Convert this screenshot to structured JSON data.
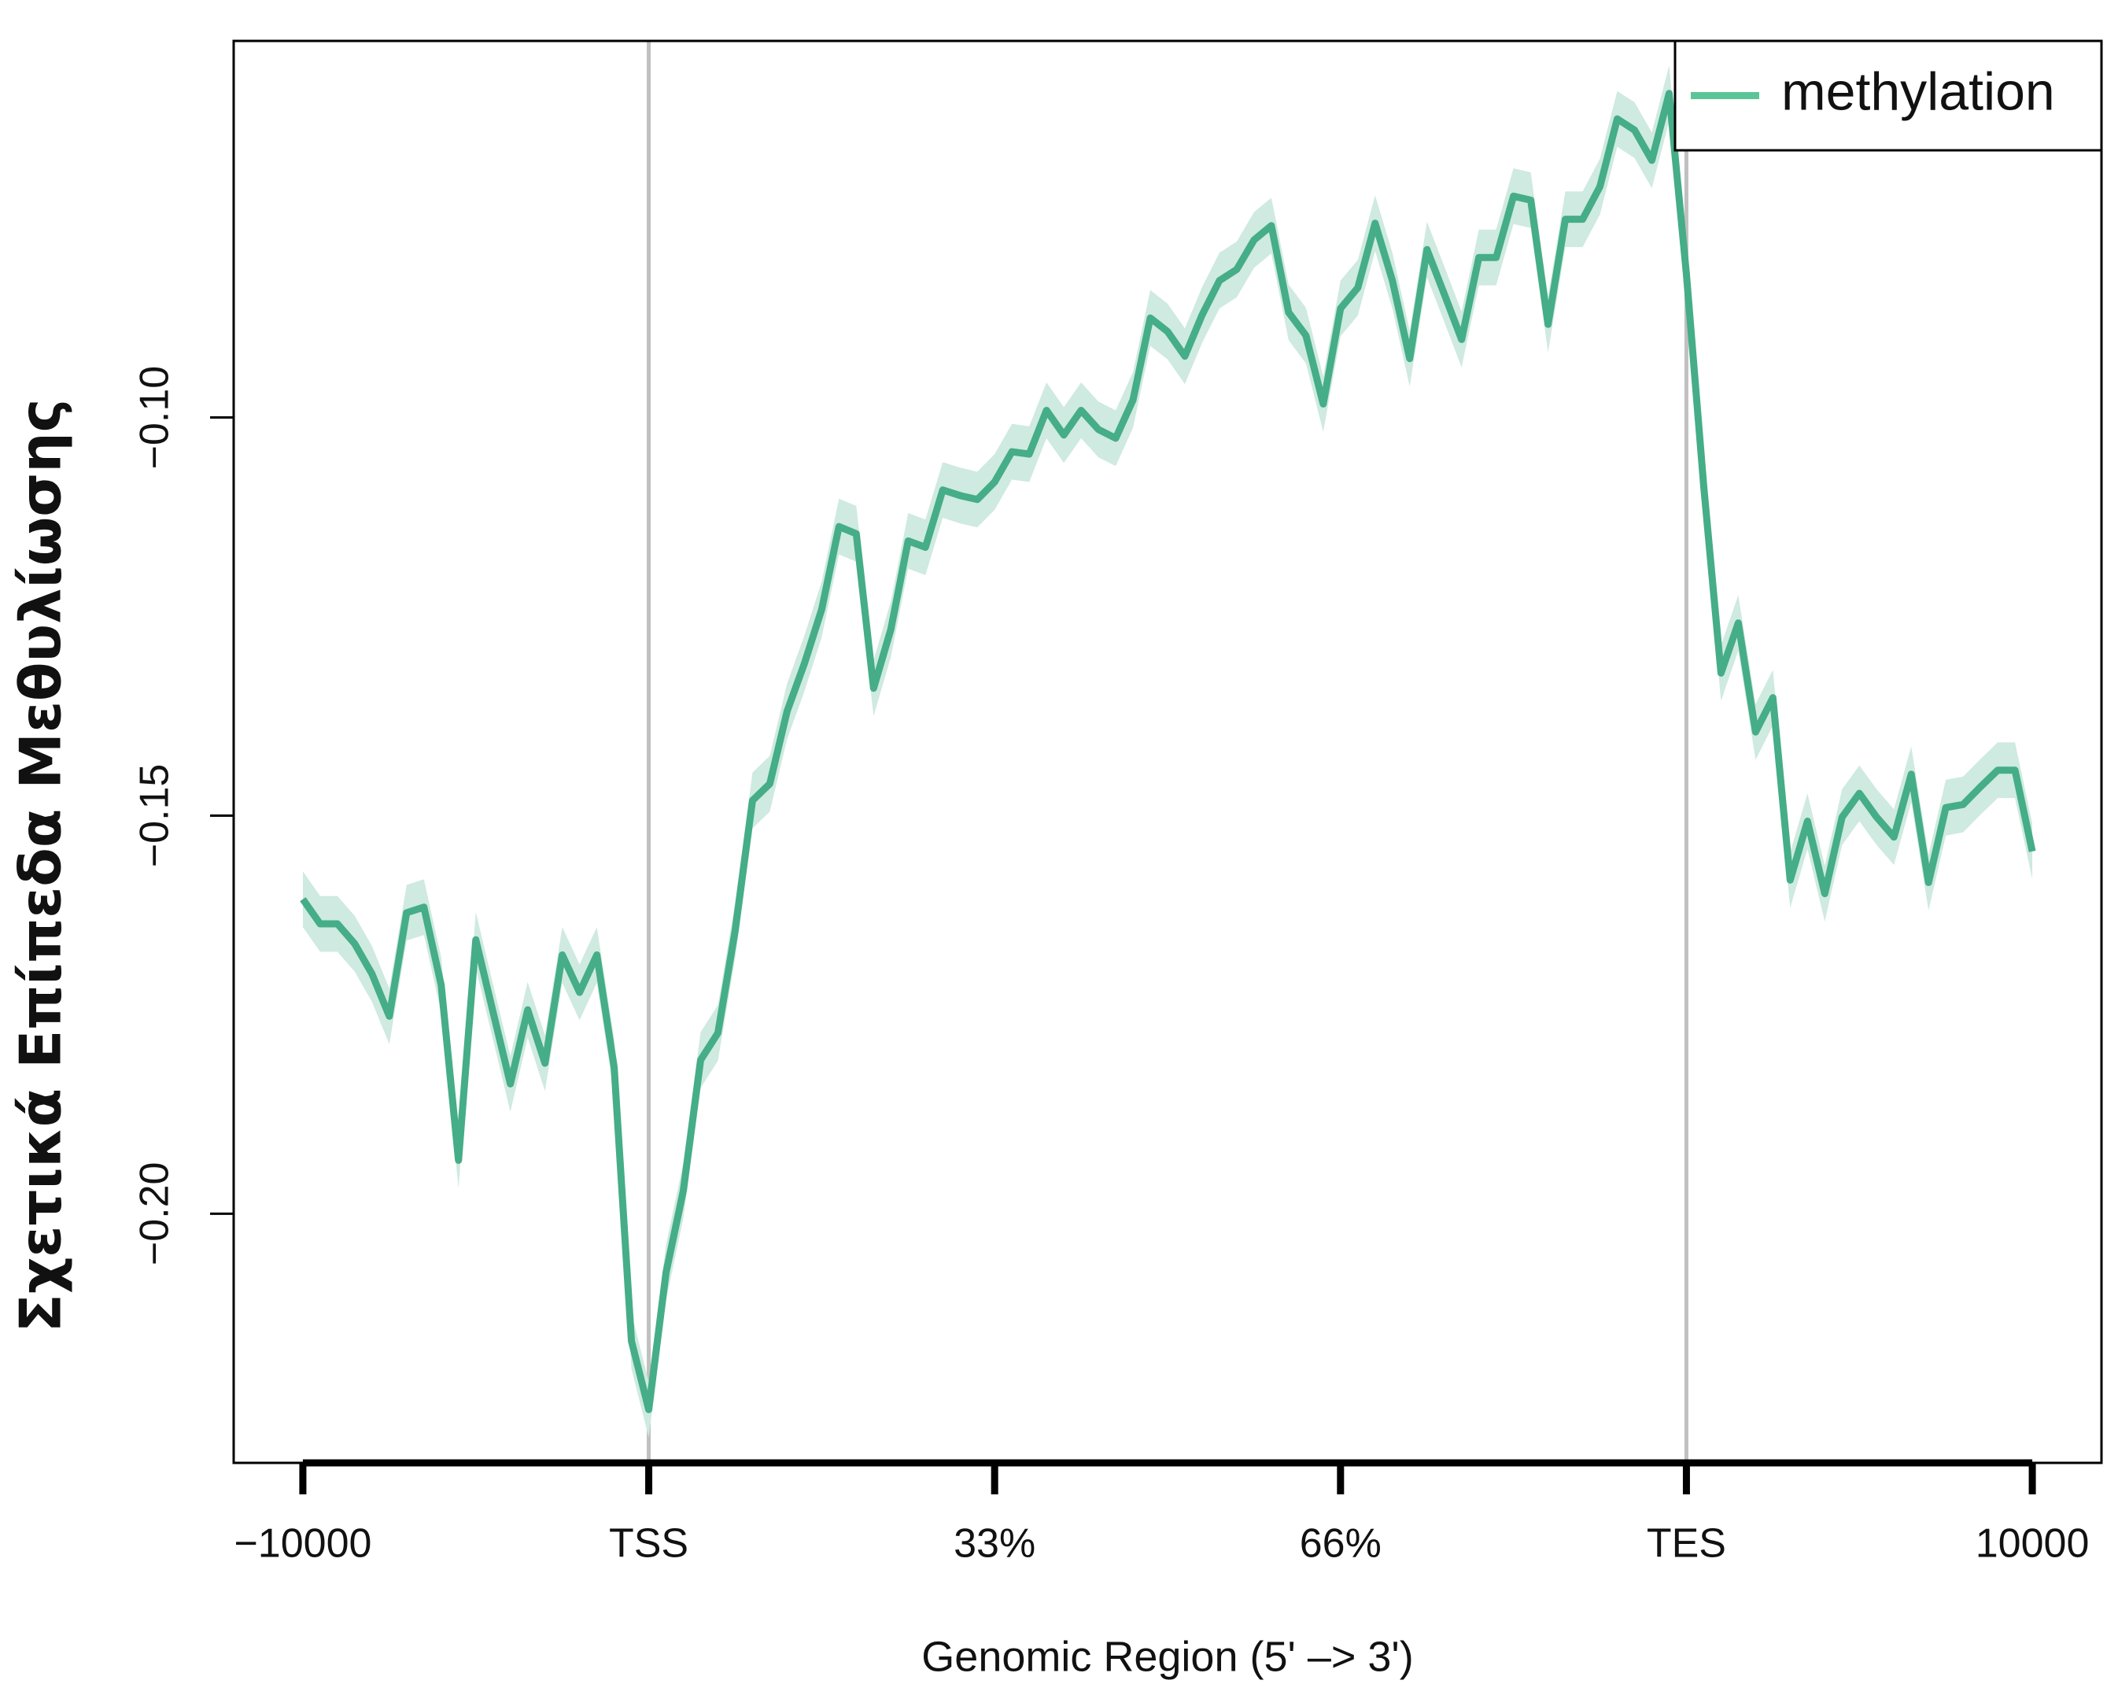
{
  "chart_data": {
    "type": "line",
    "xlabel": "Genomic Region (5' –> 3')",
    "ylabel": "Σχετικά Επίπεδα Μεθυλίωσης",
    "x": [
      0,
      1,
      2,
      3,
      4,
      5,
      6,
      7,
      8,
      9,
      10,
      11,
      12,
      13,
      14,
      15,
      16,
      17,
      18,
      19,
      20,
      21,
      22,
      23,
      24,
      25,
      26,
      27,
      28,
      29,
      30,
      31,
      32,
      33,
      34,
      35,
      36,
      37,
      38,
      39,
      40,
      41,
      42,
      43,
      44,
      45,
      46,
      47,
      48,
      49,
      50,
      51,
      52,
      53,
      54,
      55,
      56,
      57,
      58,
      59,
      60,
      61,
      62,
      63,
      64,
      65,
      66,
      67,
      68,
      69,
      70,
      71,
      72,
      73,
      74,
      75,
      76,
      77,
      78,
      79,
      80,
      81,
      82,
      83,
      84,
      85,
      86,
      87,
      88,
      89,
      90,
      91,
      92,
      93,
      94,
      95,
      96,
      97,
      98,
      99,
      100
    ],
    "series": [
      {
        "name": "methylation",
        "color": "#45ad87",
        "band_color": "#cfeae0",
        "legend_color": "#5cc597",
        "error": 0.0035,
        "values": [
          -0.1605,
          -0.1636,
          -0.1636,
          -0.1661,
          -0.1699,
          -0.1752,
          -0.1622,
          -0.1615,
          -0.1713,
          -0.1933,
          -0.1656,
          -0.1747,
          -0.1837,
          -0.1744,
          -0.1811,
          -0.1675,
          -0.1722,
          -0.1675,
          -0.1816,
          -0.216,
          -0.2246,
          -0.2074,
          -0.1971,
          -0.1807,
          -0.1773,
          -0.1644,
          -0.1481,
          -0.146,
          -0.1369,
          -0.1309,
          -0.1241,
          -0.1137,
          -0.1146,
          -0.134,
          -0.1266,
          -0.1155,
          -0.1163,
          -0.1091,
          -0.1098,
          -0.1103,
          -0.1081,
          -0.1043,
          -0.1046,
          -0.0991,
          -0.1022,
          -0.0991,
          -0.1015,
          -0.1026,
          -0.0978,
          -0.0875,
          -0.0892,
          -0.0923,
          -0.0871,
          -0.0828,
          -0.0814,
          -0.0777,
          -0.0759,
          -0.0868,
          -0.0897,
          -0.0983,
          -0.0863,
          -0.0837,
          -0.0756,
          -0.0828,
          -0.0926,
          -0.0789,
          -0.0845,
          -0.0902,
          -0.0799,
          -0.0799,
          -0.0722,
          -0.0727,
          -0.0883,
          -0.0751,
          -0.0751,
          -0.071,
          -0.0625,
          -0.0639,
          -0.0677,
          -0.0593,
          -0.082,
          -0.1086,
          -0.1321,
          -0.1258,
          -0.1395,
          -0.1352,
          -0.1581,
          -0.1507,
          -0.1598,
          -0.1502,
          -0.1472,
          -0.1502,
          -0.1527,
          -0.1448,
          -0.1584,
          -0.149,
          -0.1486,
          -0.1464,
          -0.1443,
          -0.1443,
          -0.1545
        ]
      }
    ],
    "xlim": [
      -4,
      104
    ],
    "ylim": [
      -0.2313,
      -0.0527
    ],
    "xticks": [
      {
        "value": 0,
        "label": "−10000"
      },
      {
        "value": 20,
        "label": "TSS"
      },
      {
        "value": 40,
        "label": "33%"
      },
      {
        "value": 60,
        "label": "66%"
      },
      {
        "value": 80,
        "label": "TES"
      },
      {
        "value": 100,
        "label": "10000"
      }
    ],
    "yticks": [
      {
        "value": -0.2,
        "label": "−0.20"
      },
      {
        "value": -0.15,
        "label": "−0.15"
      },
      {
        "value": -0.1,
        "label": "−0.10"
      }
    ],
    "vlines": [
      20,
      80
    ],
    "vline_color": "#c0c0c0",
    "legend": "top-right"
  }
}
